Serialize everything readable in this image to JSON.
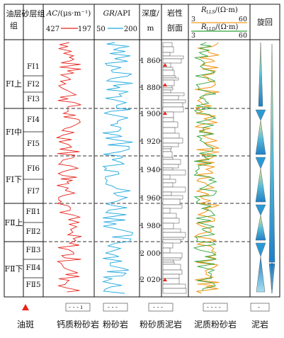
{
  "header": {
    "col_formation_group": "油层组",
    "col_sand_group": "砂层组",
    "ac_label": "AC/(μs·m⁻¹)",
    "ac_left": "427",
    "ac_right": "197",
    "gr_label": "GR/API",
    "gr_left": "50",
    "gr_right": "200",
    "depth_label": "深度/m",
    "lith_label": "岩性剖面",
    "res_lls_label": "R_LLS/(Ω·m)",
    "res_lld_label": "R_LLD/(Ω·m)",
    "res_left": "3",
    "res_right": "60",
    "cycle_label": "旋回"
  },
  "formations": [
    "FⅠ上",
    "FⅠ中",
    "FⅠ下",
    "FⅡ上",
    "FⅡ下"
  ],
  "sand_groups": [
    "FⅠ1",
    "FⅠ2",
    "FⅠ3",
    "FⅠ4",
    "FⅠ5",
    "FⅠ6",
    "FⅠ7",
    "FⅡ1",
    "FⅡ2",
    "FⅡ3",
    "FⅡ4",
    "FⅡ5"
  ],
  "depth_ticks": [
    "1 860",
    "1 880",
    "1 900",
    "1 920",
    "1 940",
    "1 960",
    "1 980",
    "2 000",
    "2 020"
  ],
  "legend": [
    {
      "label": "油斑",
      "icon": "red-triangle-icon"
    },
    {
      "label": "钙质粉砂岩",
      "icon": "calcareous-siltstone-pattern"
    },
    {
      "label": "粉砂岩",
      "icon": "siltstone-pattern"
    },
    {
      "label": "粉砂质泥岩",
      "icon": "silty-mudstone-pattern"
    },
    {
      "label": "泥质粉砂岩",
      "icon": "argillaceous-siltstone-pattern"
    },
    {
      "label": "泥岩",
      "icon": "mudstone-pattern"
    }
  ],
  "colors": {
    "ac": "#e8241c",
    "gr": "#1ea8e0",
    "lls": "#f39a1e",
    "lld": "#2fa33a",
    "cycle": "#2a9ad6",
    "oil": "#e8241c"
  }
}
